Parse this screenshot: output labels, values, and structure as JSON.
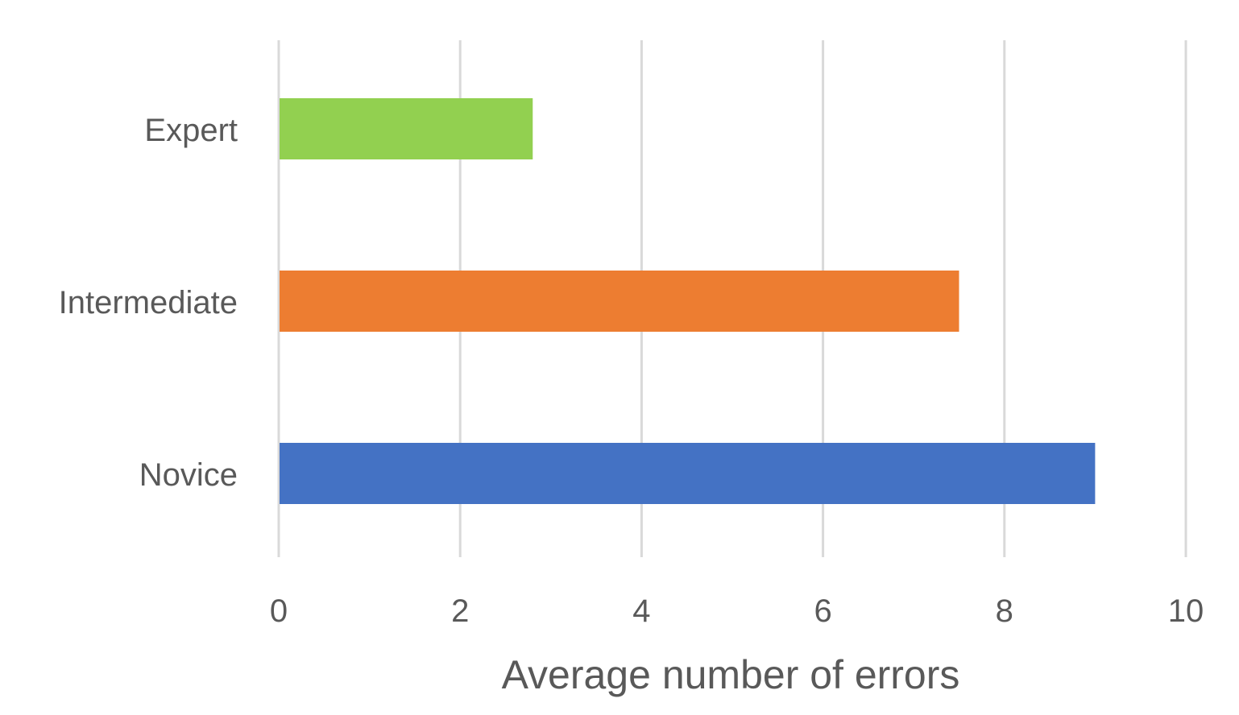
{
  "chart_data": {
    "type": "bar",
    "orientation": "horizontal",
    "categories": [
      "Expert",
      "Intermediate",
      "Novice"
    ],
    "values": [
      2.8,
      7.5,
      9.0
    ],
    "colors": [
      "#92d050",
      "#ed7d31",
      "#4472c4"
    ],
    "title": "",
    "xlabel": "Average number of errors",
    "ylabel": "",
    "xlim": [
      0,
      10
    ],
    "xticks": [
      "0",
      "2",
      "4",
      "6",
      "8",
      "10"
    ],
    "grid": "vertical",
    "gridColor": "#d9d9d9",
    "legend": "none"
  }
}
